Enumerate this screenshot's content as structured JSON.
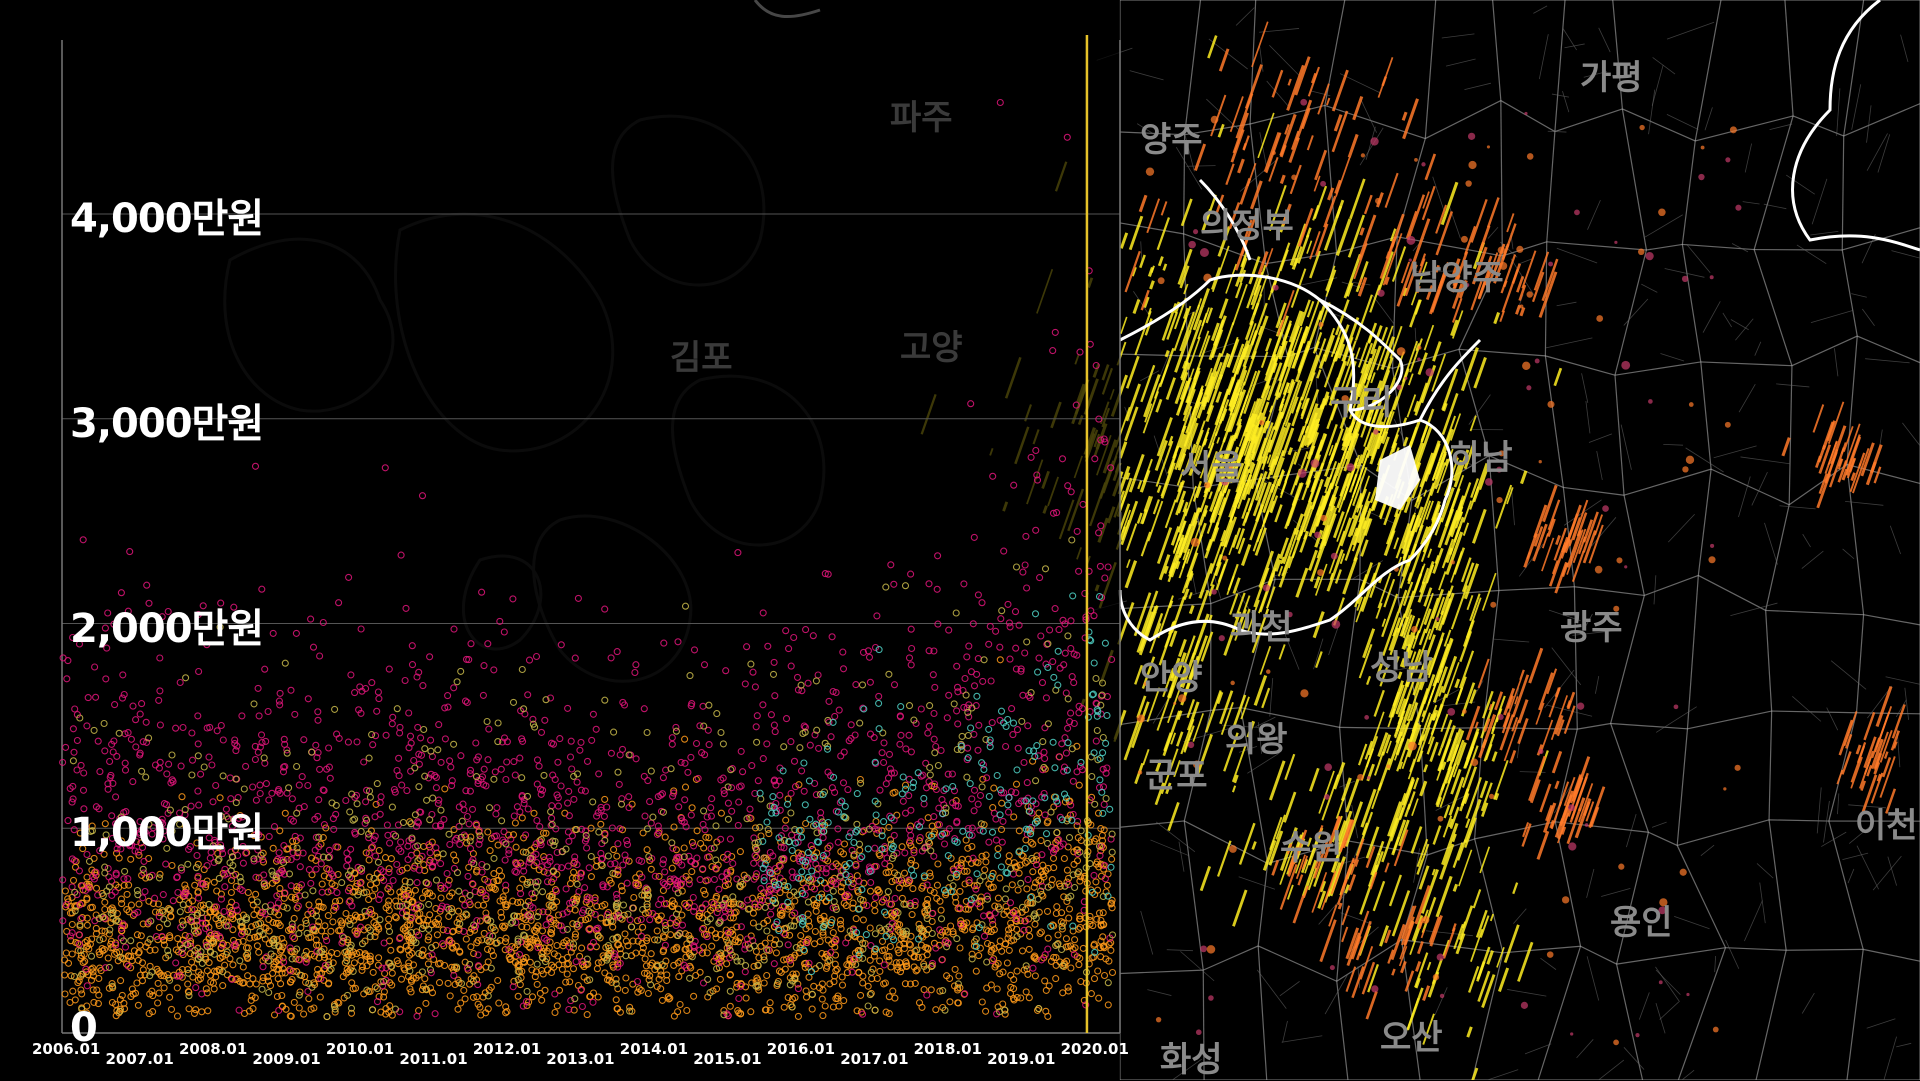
{
  "chart_data": {
    "type": "scatter",
    "y_ticks": [
      "0",
      "1,000만원",
      "2,000만원",
      "3,000만원",
      "4,000만원"
    ],
    "y_tick_values": [
      0,
      1000,
      2000,
      3000,
      4000
    ],
    "ylim": [
      0,
      4850
    ],
    "x_ticks": [
      "2006.01",
      "2007.01",
      "2008.01",
      "2009.01",
      "2010.01",
      "2011.01",
      "2012.01",
      "2013.01",
      "2014.01",
      "2015.01",
      "2016.01",
      "2017.01",
      "2018.01",
      "2019.01",
      "2020.01"
    ],
    "xlim": [
      2006.0,
      2020.4
    ],
    "current_marker_x": 2019.95,
    "grid": true,
    "series": [
      {
        "color": "#ff9a1a",
        "trend": [
          [
            2006.0,
            420
          ],
          [
            2008.0,
            450
          ],
          [
            2010.0,
            470
          ],
          [
            2012.0,
            470
          ],
          [
            2014.0,
            480
          ],
          [
            2016.0,
            500
          ],
          [
            2018.0,
            520
          ],
          [
            2020.0,
            580
          ]
        ]
      },
      {
        "color": "#e0157a",
        "trend": [
          [
            2006.0,
            950
          ],
          [
            2007.0,
            1000
          ],
          [
            2008.0,
            900
          ],
          [
            2009.0,
            950
          ],
          [
            2010.0,
            1000
          ],
          [
            2012.0,
            900
          ],
          [
            2014.0,
            850
          ],
          [
            2016.0,
            950
          ],
          [
            2018.0,
            1200
          ],
          [
            2019.5,
            1500
          ],
          [
            2020.2,
            1700
          ]
        ]
      },
      {
        "color": "#c8b84a",
        "trend": [
          [
            2006.0,
            600
          ],
          [
            2010.0,
            620
          ],
          [
            2014.0,
            650
          ],
          [
            2018.0,
            750
          ],
          [
            2020.0,
            900
          ]
        ]
      },
      {
        "color": "#4fd1c5",
        "trend": [
          [
            2015.5,
            800
          ],
          [
            2017.0,
            1000
          ],
          [
            2018.5,
            1100
          ],
          [
            2020.2,
            1350
          ]
        ]
      }
    ]
  },
  "map": {
    "regions": [
      {
        "name": "양주",
        "dim": false
      },
      {
        "name": "가평",
        "dim": false
      },
      {
        "name": "의정부",
        "dim": false
      },
      {
        "name": "남양주",
        "dim": false
      },
      {
        "name": "구리",
        "dim": false
      },
      {
        "name": "서울",
        "dim": false
      },
      {
        "name": "하남",
        "dim": false
      },
      {
        "name": "과천",
        "dim": false
      },
      {
        "name": "성남",
        "dim": false
      },
      {
        "name": "광주",
        "dim": false
      },
      {
        "name": "안양",
        "dim": false
      },
      {
        "name": "의왕",
        "dim": false
      },
      {
        "name": "군포",
        "dim": false
      },
      {
        "name": "수원",
        "dim": false
      },
      {
        "name": "용인",
        "dim": false
      },
      {
        "name": "이천",
        "dim": false
      },
      {
        "name": "화성",
        "dim": false
      },
      {
        "name": "오산",
        "dim": false
      },
      {
        "name": "파주",
        "dim": true
      },
      {
        "name": "김포",
        "dim": true
      },
      {
        "name": "고양",
        "dim": true
      }
    ],
    "hot_color": "#ffee22",
    "warm_color": "#ff7a2a",
    "boundary_color": "#ffffff"
  }
}
